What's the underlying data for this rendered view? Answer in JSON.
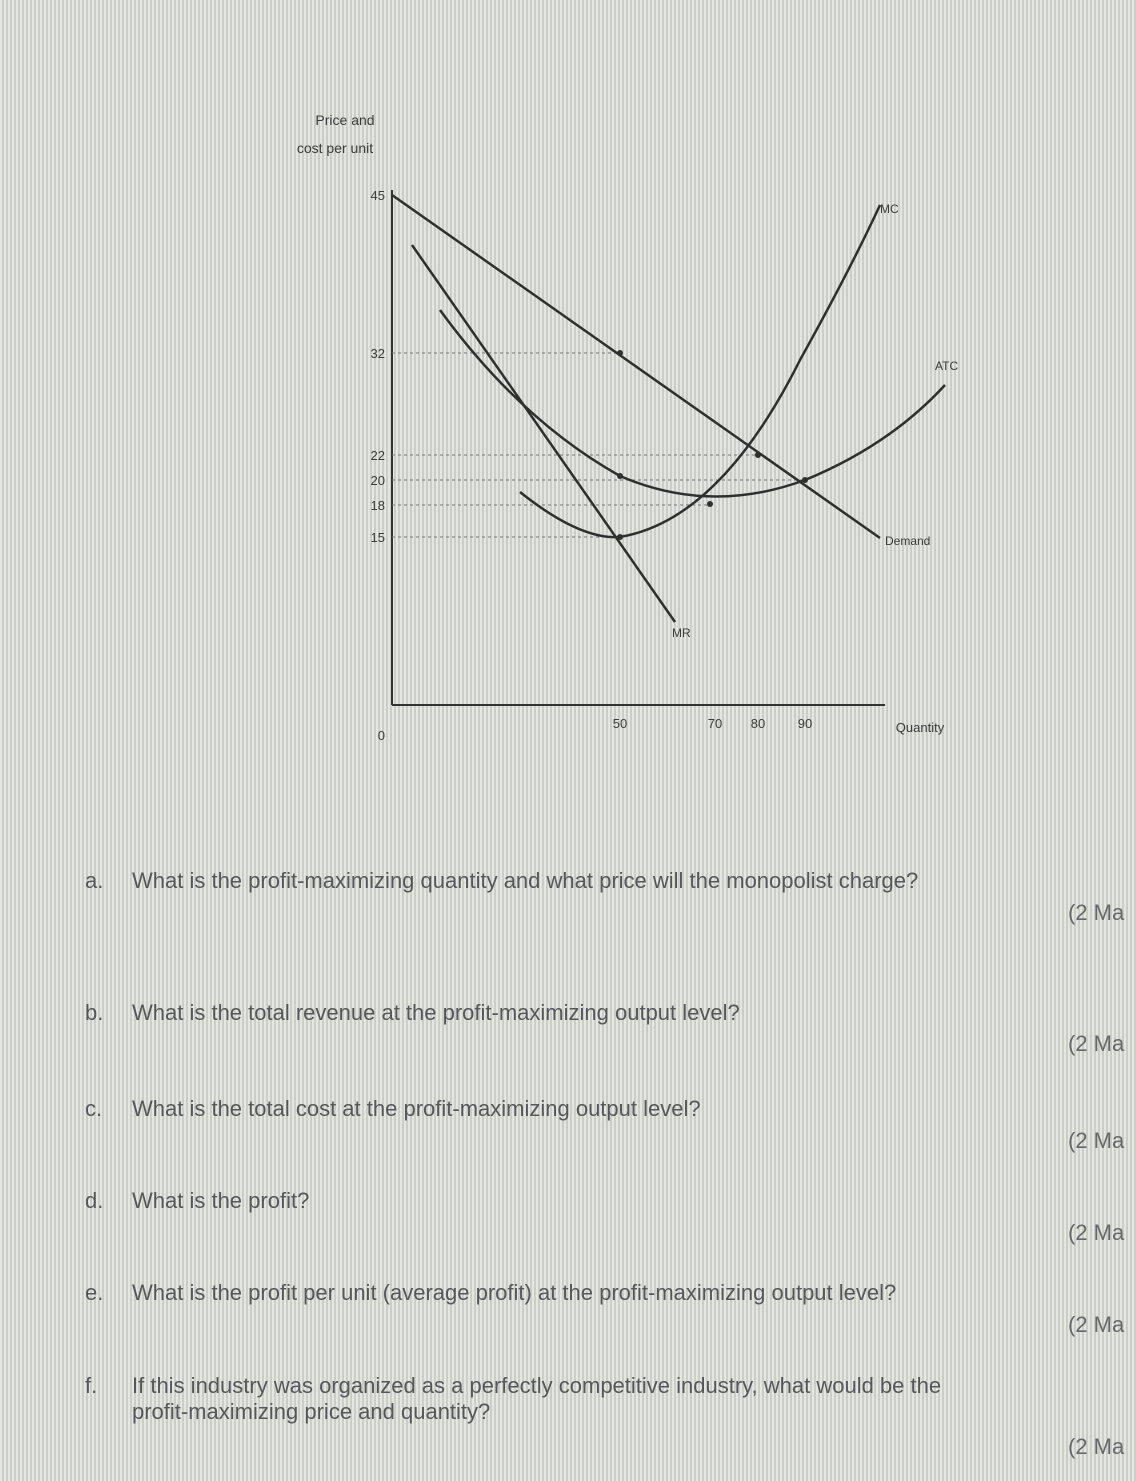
{
  "figure": {
    "y_axis_label": [
      "Price and",
      "cost per unit"
    ],
    "y_ticks": [
      "45",
      "32",
      "22",
      "20",
      "18",
      "15"
    ],
    "origin": "0",
    "x_ticks": [
      "50",
      "70",
      "80",
      "90"
    ],
    "x_axis_label": "Quantity",
    "curve_labels": {
      "mc": "MC",
      "atc": "ATC",
      "demand": "Demand",
      "mr": "MR"
    }
  },
  "questions": [
    {
      "letter": "a.",
      "lines": [
        "What is the profit-maximizing quantity and what price will the monopolist charge?"
      ],
      "marks": "(2 Ma"
    },
    {
      "letter": "b.",
      "lines": [
        "What is the total revenue at the profit-maximizing output level?"
      ],
      "marks": "(2 Ma"
    },
    {
      "letter": "c.",
      "lines": [
        "What is the total cost at the profit-maximizing output level?"
      ],
      "marks": "(2 Ma"
    },
    {
      "letter": "d.",
      "lines": [
        "What is the profit?"
      ],
      "marks": "(2 Ma"
    },
    {
      "letter": "e.",
      "lines": [
        "What is the profit per unit (average profit) at the profit-maximizing output level?"
      ],
      "marks": "(2 Ma"
    },
    {
      "letter": "f.",
      "lines": [
        "If this industry was organized as a perfectly competitive industry, what would be the",
        "profit-maximizing price and quantity?"
      ],
      "marks": "(2 Ma"
    }
  ]
}
